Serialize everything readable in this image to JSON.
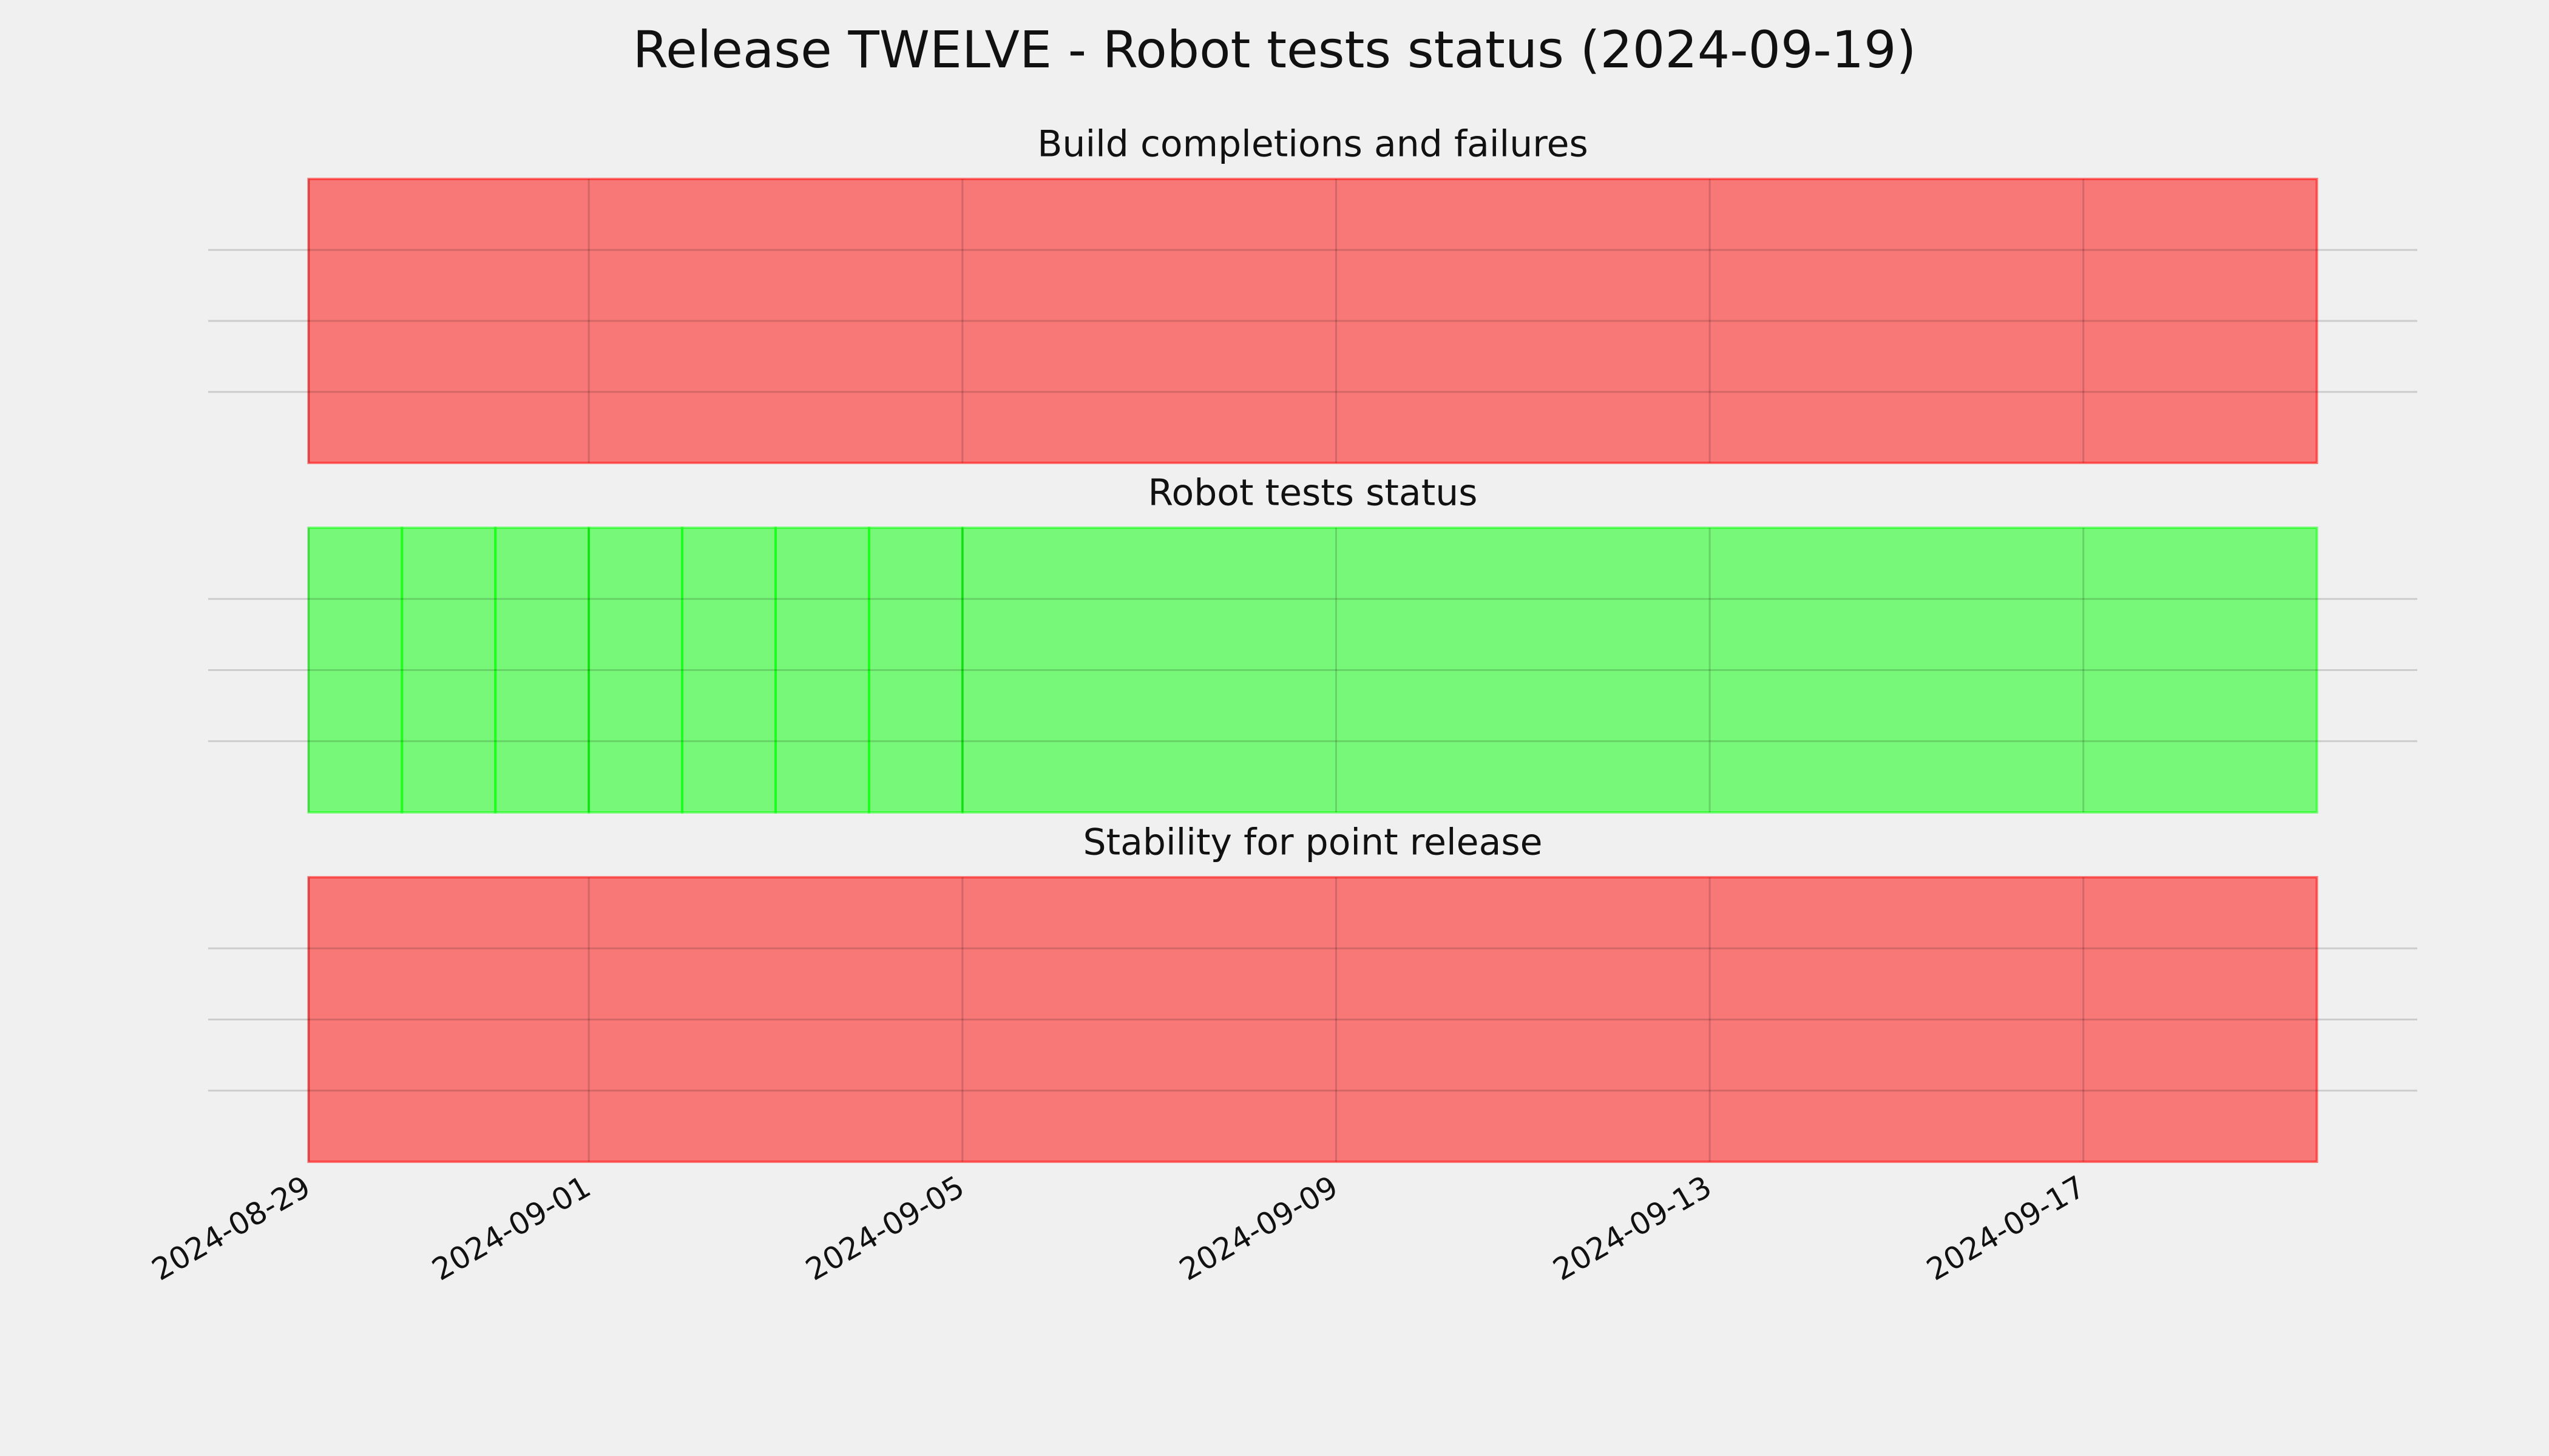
{
  "title": "Release TWELVE - Robot tests status (2024-09-19)",
  "chart_data": [
    {
      "type": "status",
      "title": "Build completions and failures",
      "edges": [
        "2024-08-29",
        "2024-09-19T12:00"
      ],
      "values": [
        0
      ],
      "status_colors": [
        "#ff0000",
        "#00ff00"
      ],
      "alpha": 0.5,
      "xlim": [
        "2024-08-27T22:12",
        "2024-09-20T13:48"
      ],
      "xticks": [
        "2024-08-29",
        "2024-09-01",
        "2024-09-05",
        "2024-09-09",
        "2024-09-13",
        "2024-09-17"
      ],
      "ylim": [
        0,
        1
      ],
      "yticks": [
        0.25,
        0.5,
        0.75
      ],
      "grid": true
    },
    {
      "type": "status",
      "title": "Robot tests status",
      "edges": [
        "2024-08-29",
        "2024-08-30",
        "2024-08-31",
        "2024-09-01",
        "2024-09-02",
        "2024-09-03",
        "2024-09-04",
        "2024-09-05",
        "2024-09-19T12:00"
      ],
      "values": [
        1,
        1,
        1,
        1,
        1,
        1,
        1,
        1
      ],
      "status_colors": [
        "#ff0000",
        "#00ff00"
      ],
      "alpha": 0.5,
      "xlim": [
        "2024-08-27T22:12",
        "2024-09-20T13:48"
      ],
      "xticks": [
        "2024-08-29",
        "2024-09-01",
        "2024-09-05",
        "2024-09-09",
        "2024-09-13",
        "2024-09-17"
      ],
      "ylim": [
        0,
        1
      ],
      "yticks": [
        0.25,
        0.5,
        0.75
      ],
      "grid": true
    },
    {
      "type": "status",
      "title": "Stability for point release",
      "edges": [
        "2024-08-29",
        "2024-09-19T12:00"
      ],
      "values": [
        0
      ],
      "status_colors": [
        "#ff0000",
        "#00ff00"
      ],
      "alpha": 0.5,
      "xlim": [
        "2024-08-27T22:12",
        "2024-09-20T13:48"
      ],
      "xticks": [
        "2024-08-29",
        "2024-09-01",
        "2024-09-05",
        "2024-09-09",
        "2024-09-13",
        "2024-09-17"
      ],
      "ylim": [
        0,
        1
      ],
      "yticks": [
        0.25,
        0.5,
        0.75
      ],
      "grid": true,
      "show_xtick_labels": true
    }
  ]
}
